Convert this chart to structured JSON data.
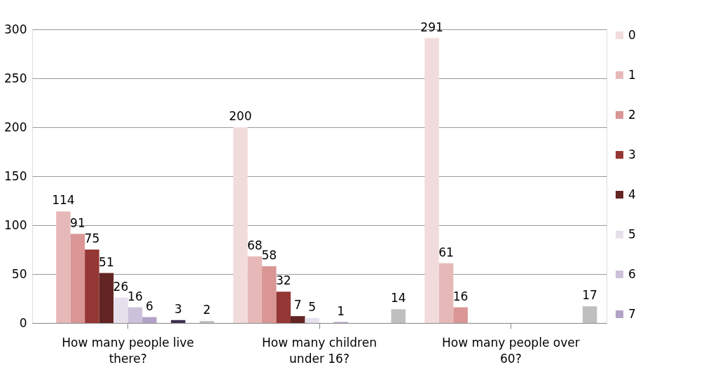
{
  "chart_data": {
    "type": "bar",
    "categories": [
      "How many people live there?",
      "How many children under 16?",
      "How many people over 60?"
    ],
    "series": [
      {
        "name": "0",
        "color": "#f2dcdb",
        "values": [
          null,
          200,
          291
        ]
      },
      {
        "name": "1",
        "color": "#e6b9b8",
        "values": [
          114,
          68,
          61
        ]
      },
      {
        "name": "2",
        "color": "#d99694",
        "values": [
          91,
          58,
          16
        ]
      },
      {
        "name": "3",
        "color": "#953735",
        "values": [
          75,
          32,
          null
        ]
      },
      {
        "name": "4",
        "color": "#632523",
        "values": [
          51,
          7,
          null
        ]
      },
      {
        "name": "5",
        "color": "#e5e0ec",
        "values": [
          26,
          5,
          null
        ]
      },
      {
        "name": "6",
        "color": "#ccc1da",
        "values": [
          16,
          null,
          null
        ]
      },
      {
        "name": "7",
        "color": "#b3a2c7",
        "values": [
          6,
          1,
          null
        ]
      },
      {
        "color": "#8064a2",
        "values": [
          null,
          null,
          null
        ]
      },
      {
        "color": "#403152",
        "values": [
          3,
          null,
          null
        ]
      },
      {
        "color": "#a6a6a6",
        "values": [
          null,
          null,
          null
        ]
      },
      {
        "color": "#bfbfbf",
        "values": [
          2,
          14,
          17
        ]
      }
    ],
    "ylim": [
      0,
      300
    ],
    "yticks": [
      0,
      50,
      100,
      150,
      200,
      250,
      300
    ],
    "grid": "y",
    "legend": "right",
    "data_labels": true
  }
}
